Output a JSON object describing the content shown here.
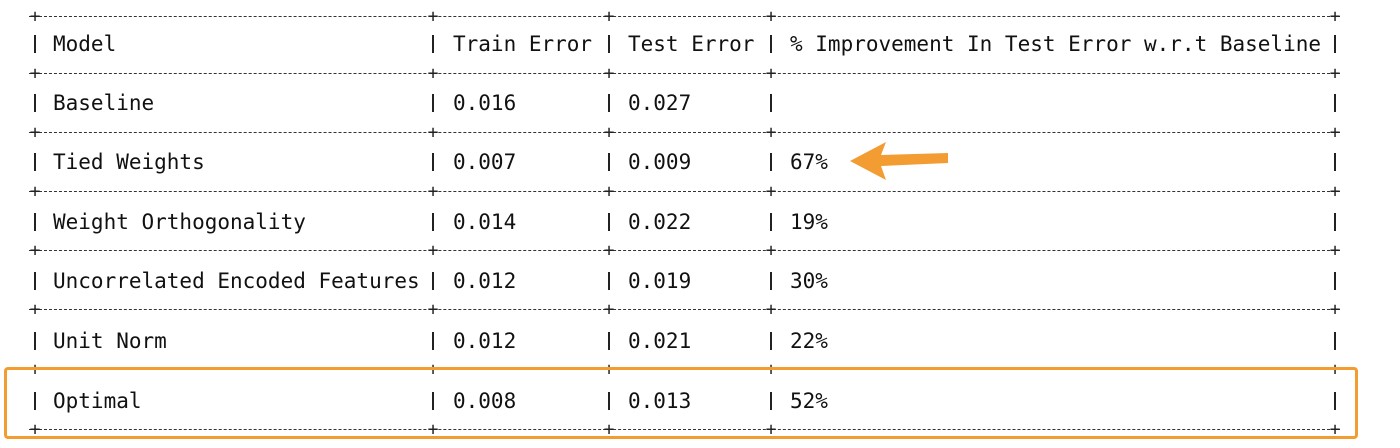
{
  "table": {
    "headers": [
      "Model",
      "Train Error",
      "Test Error",
      "% Improvement In Test Error w.r.t Baseline"
    ],
    "rows": [
      {
        "model": "Baseline",
        "train_error": "0.016",
        "test_error": "0.027",
        "improvement": ""
      },
      {
        "model": "Tied Weights",
        "train_error": "0.007",
        "test_error": "0.009",
        "improvement": "67%"
      },
      {
        "model": "Weight Orthogonality",
        "train_error": "0.014",
        "test_error": "0.022",
        "improvement": "19%"
      },
      {
        "model": "Uncorrelated Encoded Features",
        "train_error": "0.012",
        "test_error": "0.019",
        "improvement": "30%"
      },
      {
        "model": "Unit Norm",
        "train_error": "0.012",
        "test_error": "0.021",
        "improvement": "22%"
      },
      {
        "model": "Optimal",
        "train_error": "0.008",
        "test_error": "0.013",
        "improvement": "52%"
      }
    ]
  },
  "annotations": {
    "highlighted_row": "Optimal",
    "arrow_target_row": "Tied Weights",
    "accent_color": "#f39c32"
  }
}
